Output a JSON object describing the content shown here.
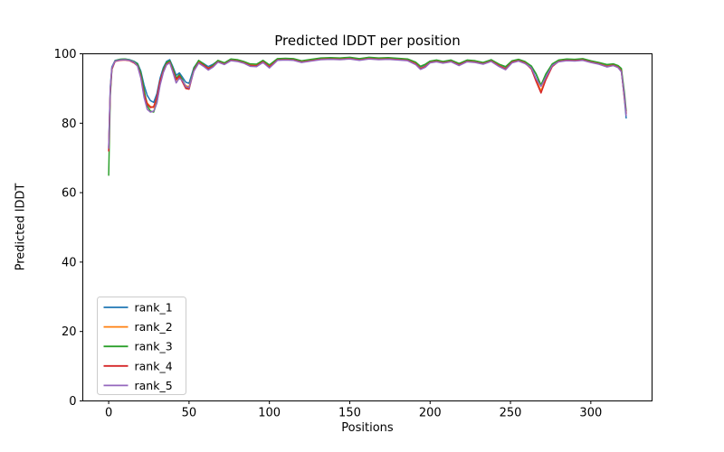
{
  "figure": {
    "title": "Predicted lDDT per position",
    "xlabel": "Positions",
    "ylabel": "Predicted lDDT",
    "background": "#ffffff",
    "spine_color": "#000000",
    "text_color": "#000000"
  },
  "legend": {
    "position": "lower left",
    "border_color": "#cccccc",
    "fill": "#ffffff"
  },
  "chart_data": {
    "type": "line",
    "title": "Predicted lDDT per position",
    "xlabel": "Positions",
    "ylabel": "Predicted lDDT",
    "xlim": [
      -16.1,
      338.1
    ],
    "ylim": [
      0,
      100
    ],
    "xticks": [
      0,
      50,
      100,
      150,
      200,
      250,
      300
    ],
    "yticks": [
      0,
      20,
      40,
      60,
      80,
      100
    ],
    "grid": false,
    "legend_position": "lower left",
    "line_width": 1.5,
    "x": [
      0,
      1,
      2,
      4,
      7,
      10,
      13,
      16,
      18,
      20,
      22,
      24,
      26,
      28,
      30,
      32,
      34,
      36,
      38,
      40,
      42,
      44,
      46,
      48,
      50,
      53,
      56,
      59,
      62,
      65,
      68,
      72,
      76,
      80,
      84,
      88,
      92,
      96,
      100,
      105,
      110,
      115,
      120,
      126,
      132,
      138,
      144,
      150,
      156,
      162,
      168,
      174,
      180,
      186,
      191,
      194,
      197,
      200,
      204,
      208,
      213,
      218,
      223,
      228,
      233,
      238,
      243,
      247,
      251,
      255,
      259,
      263,
      266,
      269,
      272,
      276,
      280,
      285,
      290,
      295,
      300,
      305,
      310,
      314,
      317,
      319,
      321,
      322
    ],
    "series": [
      {
        "name": "rank_1",
        "color": "#1f77b4",
        "values": [
          73.0,
          90.5,
          96.2,
          98.1,
          98.4,
          98.5,
          98.3,
          97.8,
          97.2,
          95.0,
          91.0,
          88.0,
          86.5,
          86.0,
          88.5,
          93.0,
          96.0,
          97.8,
          98.3,
          96.2,
          93.8,
          94.5,
          93.2,
          91.8,
          91.5,
          96.0,
          98.0,
          97.2,
          96.3,
          97.0,
          98.0,
          97.3,
          98.4,
          98.2,
          97.7,
          97.0,
          96.9,
          98.0,
          96.6,
          98.5,
          98.6,
          98.5,
          97.9,
          98.3,
          98.7,
          98.8,
          98.7,
          98.9,
          98.5,
          98.9,
          98.7,
          98.8,
          98.6,
          98.4,
          97.5,
          96.2,
          96.8,
          97.8,
          98.1,
          97.7,
          98.1,
          97.1,
          98.1,
          97.9,
          97.4,
          98.2,
          96.9,
          96.1,
          97.9,
          98.3,
          97.7,
          96.4,
          94.0,
          90.8,
          94.0,
          97.0,
          98.1,
          98.4,
          98.3,
          98.5,
          97.9,
          97.4,
          96.7,
          97.0,
          96.5,
          95.6,
          86.5,
          81.5
        ]
      },
      {
        "name": "rank_2",
        "color": "#ff7f0e",
        "values": [
          72.5,
          89.5,
          95.8,
          97.9,
          98.2,
          98.3,
          98.1,
          97.4,
          96.6,
          93.8,
          88.8,
          85.8,
          84.8,
          84.5,
          87.0,
          92.0,
          95.2,
          97.2,
          97.8,
          95.3,
          92.4,
          93.4,
          92.0,
          90.8,
          90.5,
          95.4,
          97.7,
          96.8,
          95.9,
          96.6,
          97.8,
          97.1,
          98.2,
          98.0,
          97.5,
          96.7,
          96.6,
          97.8,
          96.3,
          98.3,
          98.4,
          98.3,
          97.7,
          98.1,
          98.5,
          98.6,
          98.5,
          98.7,
          98.3,
          98.7,
          98.5,
          98.6,
          98.4,
          98.2,
          97.2,
          95.8,
          96.4,
          97.6,
          97.9,
          97.5,
          97.9,
          96.9,
          97.9,
          97.7,
          97.2,
          98.0,
          96.6,
          95.7,
          97.7,
          98.1,
          97.5,
          95.8,
          92.5,
          89.3,
          92.8,
          96.5,
          97.9,
          98.2,
          98.1,
          98.3,
          97.7,
          97.2,
          96.4,
          96.8,
          96.2,
          95.2,
          87.2,
          82.8
        ]
      },
      {
        "name": "rank_3",
        "color": "#2ca02c",
        "values": [
          65.0,
          88.0,
          95.5,
          98.0,
          98.4,
          98.5,
          98.2,
          97.7,
          97.0,
          94.5,
          89.8,
          85.0,
          83.5,
          83.2,
          86.0,
          91.5,
          95.5,
          97.5,
          98.0,
          95.8,
          93.0,
          94.0,
          92.5,
          90.3,
          90.0,
          95.8,
          98.1,
          97.1,
          95.7,
          96.8,
          98.1,
          97.4,
          98.5,
          98.3,
          97.8,
          97.1,
          97.0,
          98.1,
          96.8,
          98.6,
          98.7,
          98.6,
          98.0,
          98.4,
          98.8,
          98.9,
          98.8,
          99.0,
          98.6,
          99.0,
          98.8,
          98.9,
          98.7,
          98.5,
          97.6,
          96.4,
          97.0,
          97.9,
          98.2,
          97.8,
          98.2,
          97.2,
          98.2,
          98.0,
          97.5,
          98.3,
          97.0,
          96.3,
          98.0,
          98.4,
          97.8,
          96.5,
          94.2,
          91.0,
          94.2,
          97.1,
          98.2,
          98.5,
          98.4,
          98.6,
          98.0,
          97.5,
          96.9,
          97.1,
          96.6,
          95.8,
          88.5,
          83.5
        ]
      },
      {
        "name": "rank_4",
        "color": "#d62728",
        "values": [
          72.0,
          89.0,
          95.6,
          97.8,
          98.1,
          98.2,
          98.0,
          97.3,
          96.5,
          93.5,
          88.5,
          85.5,
          84.5,
          84.8,
          87.5,
          92.3,
          95.0,
          97.0,
          97.6,
          95.0,
          92.6,
          93.6,
          91.8,
          90.0,
          89.8,
          95.2,
          97.5,
          96.7,
          95.8,
          96.4,
          97.7,
          97.0,
          98.1,
          97.9,
          97.4,
          96.6,
          96.5,
          97.7,
          96.2,
          98.2,
          98.3,
          98.2,
          97.6,
          98.0,
          98.4,
          98.5,
          98.4,
          98.6,
          98.2,
          98.6,
          98.4,
          98.5,
          98.3,
          98.1,
          97.1,
          95.7,
          96.3,
          97.5,
          97.8,
          97.4,
          97.8,
          96.8,
          97.8,
          97.6,
          97.1,
          97.9,
          96.5,
          95.6,
          97.6,
          98.0,
          97.4,
          95.6,
          92.0,
          88.7,
          92.5,
          96.3,
          97.8,
          98.1,
          98.0,
          98.2,
          97.6,
          97.1,
          96.3,
          96.7,
          96.1,
          95.0,
          87.0,
          82.9
        ]
      },
      {
        "name": "rank_5",
        "color": "#9467bd",
        "values": [
          72.8,
          89.8,
          95.9,
          97.9,
          98.2,
          98.3,
          98.1,
          97.5,
          96.4,
          93.0,
          87.5,
          84.0,
          83.2,
          83.5,
          85.8,
          91.0,
          94.6,
          96.8,
          97.4,
          94.6,
          91.6,
          93.0,
          92.2,
          90.5,
          90.2,
          95.0,
          97.3,
          96.4,
          95.3,
          96.2,
          97.6,
          96.9,
          98.0,
          97.8,
          97.3,
          96.4,
          96.3,
          97.5,
          95.9,
          98.1,
          98.2,
          98.1,
          97.5,
          97.9,
          98.3,
          98.4,
          98.3,
          98.5,
          98.1,
          98.5,
          98.3,
          98.4,
          98.2,
          98.0,
          96.9,
          95.5,
          96.1,
          97.4,
          97.7,
          97.3,
          97.7,
          96.6,
          97.7,
          97.5,
          97.0,
          97.8,
          96.3,
          95.4,
          97.4,
          97.9,
          97.2,
          95.9,
          92.8,
          90.6,
          93.2,
          96.6,
          97.7,
          98.0,
          97.9,
          98.1,
          97.5,
          97.0,
          96.2,
          96.6,
          96.0,
          94.8,
          87.5,
          82.2
        ]
      }
    ]
  }
}
